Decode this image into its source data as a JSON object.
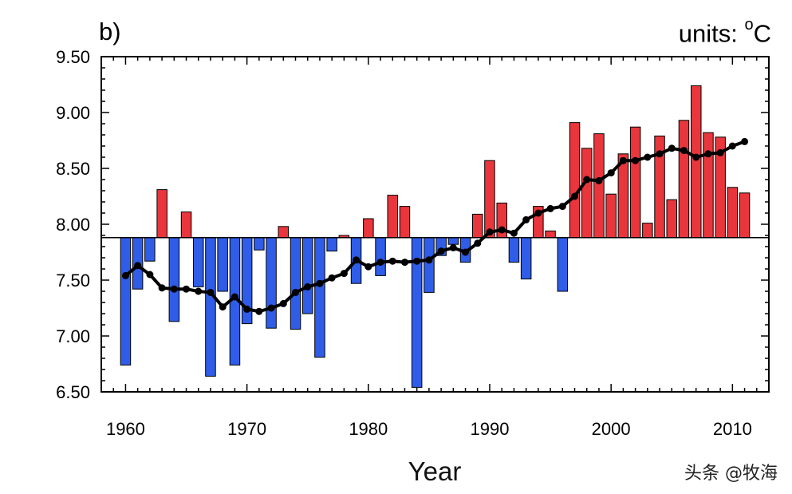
{
  "panel_label": "b)",
  "units": {
    "prefix": "units: ",
    "sup": "o",
    "suffix": "C"
  },
  "watermark": "头条 @牧海",
  "colors": {
    "above": "#e8363c",
    "below": "#2f5de8",
    "line": "#000000",
    "baseline": "#000000"
  },
  "chart_data": {
    "type": "bar",
    "title": "",
    "xlabel": "Year",
    "ylabel": "",
    "baseline": 7.88,
    "xlim": [
      1958,
      2013
    ],
    "ylim": [
      6.5,
      9.5
    ],
    "xticks": [
      "1960",
      "1970",
      "1980",
      "1990",
      "2000",
      "2010"
    ],
    "yticks": [
      "6.50",
      "7.00",
      "7.50",
      "8.00",
      "8.50",
      "9.00",
      "9.50"
    ],
    "grid": false,
    "years": [
      1960,
      1961,
      1962,
      1963,
      1964,
      1965,
      1966,
      1967,
      1968,
      1969,
      1970,
      1971,
      1972,
      1973,
      1974,
      1975,
      1976,
      1977,
      1978,
      1979,
      1980,
      1981,
      1982,
      1983,
      1984,
      1985,
      1986,
      1987,
      1988,
      1989,
      1990,
      1991,
      1992,
      1993,
      1994,
      1995,
      1996,
      1997,
      1998,
      1999,
      2000,
      2001,
      2002,
      2003,
      2004,
      2005,
      2006,
      2007,
      2008,
      2009,
      2010,
      2011
    ],
    "series": [
      {
        "type": "bar",
        "values": [
          6.74,
          7.42,
          7.67,
          8.31,
          7.13,
          8.11,
          7.44,
          6.64,
          7.4,
          6.74,
          7.11,
          7.77,
          7.07,
          7.98,
          7.06,
          7.2,
          6.81,
          7.76,
          7.9,
          7.47,
          8.05,
          7.54,
          8.26,
          8.16,
          6.54,
          7.39,
          7.72,
          7.82,
          7.66,
          8.09,
          8.57,
          8.19,
          7.66,
          7.51,
          8.16,
          7.94,
          7.4,
          8.91,
          8.68,
          8.81,
          8.27,
          8.63,
          8.87,
          8.01,
          8.79,
          8.22,
          8.93,
          9.24,
          8.82,
          8.78,
          8.33,
          8.28
        ]
      },
      {
        "type": "line",
        "values": [
          7.54,
          7.63,
          7.55,
          7.43,
          7.42,
          7.42,
          7.4,
          7.39,
          7.26,
          7.35,
          7.24,
          7.22,
          7.25,
          7.29,
          7.39,
          7.44,
          7.47,
          7.52,
          7.56,
          7.68,
          7.62,
          7.66,
          7.67,
          7.66,
          7.67,
          7.68,
          7.76,
          7.79,
          7.75,
          7.83,
          7.93,
          7.95,
          7.92,
          8.04,
          8.1,
          8.14,
          8.16,
          8.25,
          8.4,
          8.39,
          8.46,
          8.57,
          8.57,
          8.6,
          8.63,
          8.68,
          8.66,
          8.6,
          8.63,
          8.64,
          8.7,
          8.74
        ]
      }
    ]
  }
}
